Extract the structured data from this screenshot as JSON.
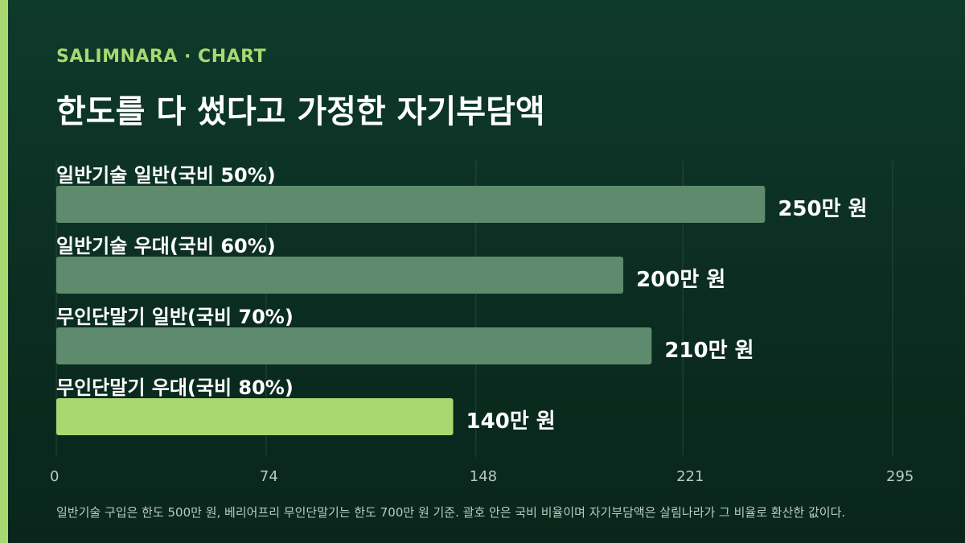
{
  "eyebrow": "SALIMNARA · CHART",
  "title": "한도를 다 썼다고 가정한 자기부담액",
  "footnote": "일반기술 구입은 한도 500만 원, 베리어프리 무인단말기는 한도 700만 원 기준. 괄호 안은 국비 비율이며 자기부담액은 살림나라가 그 비율로 환산한 값이다.",
  "colors": {
    "background": "#0e3a2b",
    "bar_default": "#5e8a6e",
    "bar_highlight": "#a9d870",
    "accent": "#a9d870"
  },
  "chart_data": {
    "type": "bar",
    "orientation": "horizontal",
    "categories": [
      "일반기술 일반(국비 50%)",
      "일반기술 우대(국비 60%)",
      "무인단말기 일반(국비 70%)",
      "무인단말기 우대(국비 80%)"
    ],
    "values": [
      250,
      200,
      210,
      140
    ],
    "value_labels": [
      "250만 원",
      "200만 원",
      "210만 원",
      "140만 원"
    ],
    "highlight_index": 3,
    "xlim": [
      0,
      295
    ],
    "xticks": [
      "0",
      "74",
      "148",
      "221",
      "295"
    ],
    "xtick_values": [
      0,
      74,
      148,
      221,
      295
    ],
    "grid": true
  }
}
